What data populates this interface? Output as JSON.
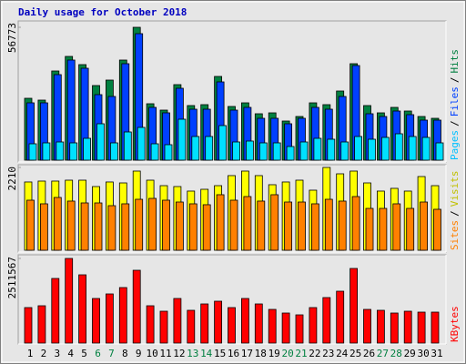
{
  "chart_data": [
    {
      "type": "bar",
      "title": "Daily usage for October 2018",
      "ylim": [
        0,
        56773
      ],
      "yticks": [
        56773
      ],
      "legend_separator": "/",
      "series": [
        {
          "name": "Pages",
          "color": "#00e0ff",
          "text_color": "#00c0ff",
          "values": [
            7000,
            7388,
            7777,
            7388,
            9333,
            15554,
            7388,
            12055,
            13999,
            7000,
            6611,
            17499,
            10110,
            10110,
            14777,
            7777,
            8166,
            7388,
            7388,
            5833,
            7777,
            9333,
            8944,
            7777,
            10110,
            8944,
            9722,
            11277,
            10110,
            9722,
            7388
          ]
        },
        {
          "name": "Files",
          "color": "#0040ff",
          "text_color": "#0040ff",
          "values": [
            24498,
            24498,
            36553,
            42775,
            39275,
            27998,
            27220,
            41219,
            54052,
            22554,
            20221,
            30720,
            21776,
            21776,
            33442,
            21387,
            22554,
            17888,
            17888,
            15554,
            17888,
            22554,
            21776,
            27220,
            40441,
            19832,
            18665,
            20998,
            19443,
            17110,
            17110
          ]
        },
        {
          "name": "Hits",
          "color": "#008040",
          "text_color": "#008040",
          "values": [
            26442,
            25664,
            38108,
            44330,
            40830,
            31886,
            34220,
            42775,
            56773,
            24110,
            21387,
            32275,
            23332,
            23721,
            35775,
            22943,
            24498,
            19832,
            20220,
            16721,
            18665,
            24498,
            23721,
            29553,
            41219,
            23332,
            20220,
            22554,
            20998,
            18665,
            17887
          ]
        }
      ]
    },
    {
      "type": "bar",
      "ylim": [
        0,
        2210
      ],
      "yticks": [
        2210
      ],
      "legend_separator": "/",
      "series": [
        {
          "name": "Sites",
          "color": "#ff8000",
          "text_color": "#ff8000",
          "values": [
            1336,
            1239,
            1409,
            1312,
            1263,
            1263,
            1190,
            1239,
            1360,
            1384,
            1336,
            1287,
            1239,
            1215,
            1482,
            1336,
            1433,
            1312,
            1482,
            1287,
            1287,
            1239,
            1360,
            1312,
            1433,
            1117,
            1117,
            1239,
            1117,
            1287,
            1093
          ]
        },
        {
          "name": "Visits",
          "color": "#ffff00",
          "text_color": "#c0c000",
          "values": [
            1822,
            1846,
            1846,
            1870,
            1870,
            1700,
            1822,
            1797,
            2113,
            1870,
            1724,
            1700,
            1579,
            1627,
            1724,
            1992,
            2113,
            1992,
            1749,
            1822,
            1870,
            1603,
            2210,
            2040,
            2113,
            1797,
            1579,
            1652,
            1579,
            1967,
            1724
          ]
        }
      ]
    },
    {
      "type": "bar",
      "ylim": [
        0,
        2511567
      ],
      "yticks": [
        2511567
      ],
      "categories": [
        "1",
        "2",
        "3",
        "4",
        "5",
        "6",
        "7",
        "8",
        "9",
        "10",
        "11",
        "12",
        "13",
        "14",
        "15",
        "16",
        "17",
        "18",
        "19",
        "20",
        "21",
        "22",
        "23",
        "24",
        "25",
        "26",
        "27",
        "28",
        "29",
        "30",
        "31"
      ],
      "category_colors": [
        "#000000",
        "#000000",
        "#000000",
        "#000000",
        "#000000",
        "#008040",
        "#008040",
        "#000000",
        "#000000",
        "#000000",
        "#000000",
        "#000000",
        "#008040",
        "#008040",
        "#000000",
        "#000000",
        "#000000",
        "#000000",
        "#000000",
        "#008040",
        "#008040",
        "#000000",
        "#000000",
        "#000000",
        "#000000",
        "#000000",
        "#008040",
        "#008040",
        "#000000",
        "#000000",
        "#000000"
      ],
      "series": [
        {
          "name": "KBytes",
          "color": "#ff0000",
          "text_color": "#ff0000",
          "values": [
            1053234,
            1107246,
            1917426,
            2511567,
            2025450,
            1323294,
            1458324,
            1647366,
            2160480,
            1107246,
            945210,
            1323294,
            972216,
            1161258,
            1242276,
            1053234,
            1323294,
            1161258,
            999222,
            891198,
            837186,
            1053234,
            1350300,
            1539342,
            2214492,
            999222,
            972216,
            891198,
            945210,
            918204,
            918204
          ]
        }
      ]
    }
  ]
}
